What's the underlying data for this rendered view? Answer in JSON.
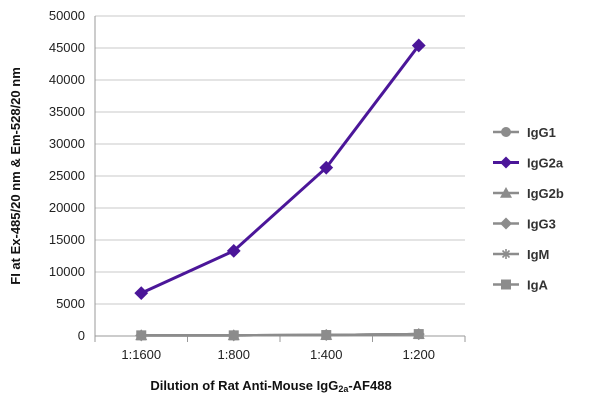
{
  "chart_data": {
    "type": "line",
    "categories": [
      "1:1600",
      "1:800",
      "1:400",
      "1:200"
    ],
    "xlabel_parts": [
      "Dilution of Rat Anti-Mouse IgG",
      "2a",
      "-AF488"
    ],
    "ylabel": "FI at Ex-485/20 nm & Em-528/20 nm",
    "ylim": [
      0,
      50000
    ],
    "yticks": [
      0,
      5000,
      10000,
      15000,
      20000,
      25000,
      30000,
      35000,
      40000,
      45000,
      50000
    ],
    "grid": true,
    "legend_position": "right",
    "series": [
      {
        "name": "IgG1",
        "marker": "circle",
        "color": "#8c8c8c",
        "values": [
          100,
          100,
          150,
          300
        ]
      },
      {
        "name": "IgG2a",
        "marker": "diamond",
        "color": "#4b1699",
        "values": [
          6700,
          13300,
          26300,
          45400
        ]
      },
      {
        "name": "IgG2b",
        "marker": "triangle",
        "color": "#8c8c8c",
        "values": [
          100,
          100,
          150,
          300
        ]
      },
      {
        "name": "IgG3",
        "marker": "diamond",
        "color": "#8c8c8c",
        "values": [
          100,
          100,
          150,
          300
        ]
      },
      {
        "name": "IgM",
        "marker": "star",
        "color": "#8c8c8c",
        "values": [
          100,
          100,
          150,
          300
        ]
      },
      {
        "name": "IgA",
        "marker": "square",
        "color": "#8c8c8c",
        "values": [
          100,
          100,
          150,
          300
        ]
      }
    ]
  }
}
